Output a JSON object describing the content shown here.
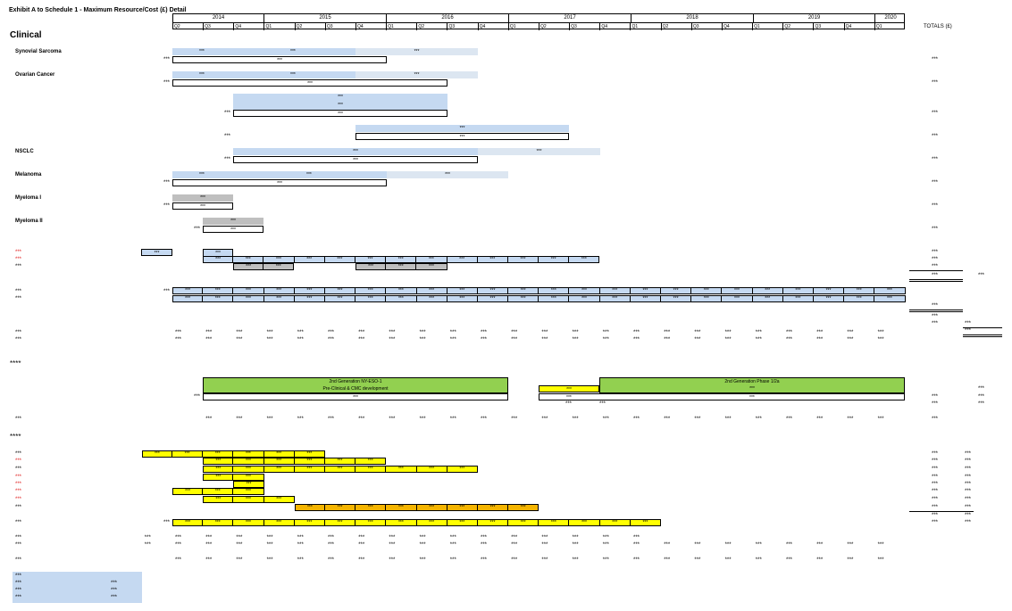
{
  "title": "Exhibit A to Schedule 1 - Maximum Resource/Cost (£) Detail",
  "section_clinical": "Clinical",
  "totals_label": "TOTALS (£)",
  "years": [
    "2014",
    "2015",
    "2016",
    "2017",
    "2018",
    "2019",
    "2020"
  ],
  "quarters": [
    "Q2",
    "Q3",
    "Q4",
    "Q1",
    "Q2",
    "Q3",
    "Q4",
    "Q1",
    "Q2",
    "Q3",
    "Q4",
    "Q1",
    "Q2",
    "Q3",
    "Q4",
    "Q1",
    "Q2",
    "Q3",
    "Q4",
    "Q1",
    "Q2",
    "Q3",
    "Q4",
    "Q1"
  ],
  "programs": {
    "synovial": "Synovial Sarcoma",
    "ovarian": "Ovarian Cancer",
    "nsclc": "NSCLC",
    "melanoma": "Melanoma",
    "myeloma1": "Myeloma I",
    "myeloma2": "Myeloma II"
  },
  "redacted": "***",
  "asterisk_redacted": "*",
  "ny_eso": {
    "line1": "2nd Generation NY-ESO-1",
    "line2": "Pre-Clinical & CMC development"
  },
  "phase12a": "2nd Generation Phase 1/2a",
  "colors": {
    "light_blue": "#c5d9f1",
    "pale_blue": "#dce6f1",
    "gray": "#bfbfbf",
    "yellow": "#ffff00",
    "orange": "#f4b400",
    "green": "#92d050",
    "red_text": "#e02020"
  }
}
